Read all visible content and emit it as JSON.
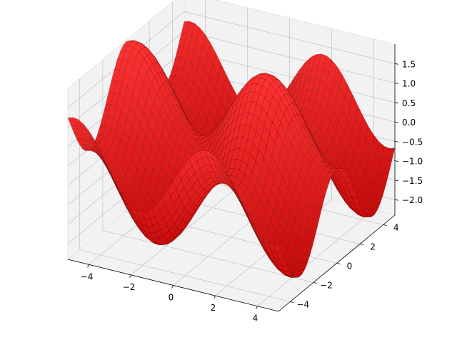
{
  "chart_data": {
    "type": "surface",
    "title": "",
    "surface_color": "#ff0000",
    "edge_color": "#000000",
    "pane_color": "#f2f2f2",
    "grid": true,
    "x_axis": {
      "range": [
        -5,
        5
      ],
      "ticks": [
        -4,
        -2,
        0,
        2,
        4
      ],
      "tick_labels": [
        "−4",
        "−2",
        "0",
        "2",
        "4"
      ]
    },
    "y_axis": {
      "range": [
        -5,
        5
      ],
      "ticks": [
        -4,
        -2,
        0,
        2,
        4
      ],
      "tick_labels": [
        "−4",
        "−2",
        "0",
        "2",
        "4"
      ]
    },
    "z_axis": {
      "range": [
        -2.4,
        2.0
      ],
      "ticks": [
        -2.0,
        -1.5,
        -1.0,
        -0.5,
        0.0,
        0.5,
        1.0,
        1.5
      ],
      "tick_labels": [
        "−2.0",
        "−1.5",
        "−1.0",
        "−0.5",
        "0.0",
        "0.5",
        "1.0",
        "1.5"
      ]
    },
    "surface_function": "z = sin(x) + cos(y)"
  }
}
